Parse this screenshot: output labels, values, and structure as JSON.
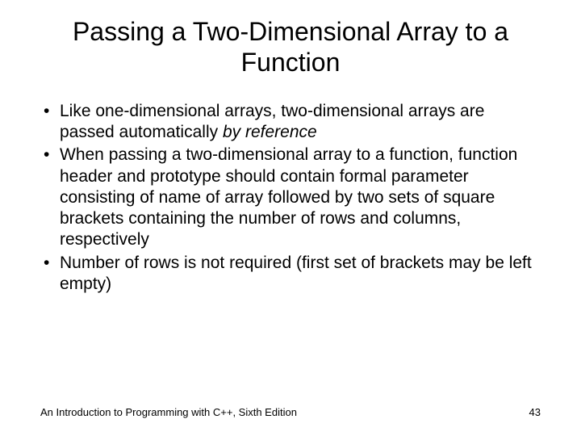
{
  "title": "Passing a Two-Dimensional Array to a Function",
  "bullets": [
    {
      "pre": "Like one-dimensional arrays, two-dimensional arrays are passed automatically ",
      "italic": "by reference",
      "post": ""
    },
    {
      "pre": "When passing a two-dimensional array to a function, function header and prototype should contain formal parameter consisting of name of array followed by two sets of square brackets containing the number of rows and columns, respectively",
      "italic": "",
      "post": ""
    },
    {
      "pre": "Number of rows is not required (first set of brackets may be left empty)",
      "italic": "",
      "post": ""
    }
  ],
  "footer": {
    "left": "An Introduction to Programming with C++, Sixth Edition",
    "page": "43"
  },
  "style": {
    "background_color": "#ffffff",
    "text_color": "#000000",
    "title_fontsize": 32,
    "body_fontsize": 21,
    "footer_fontsize": 13,
    "font_family": "Arial"
  }
}
